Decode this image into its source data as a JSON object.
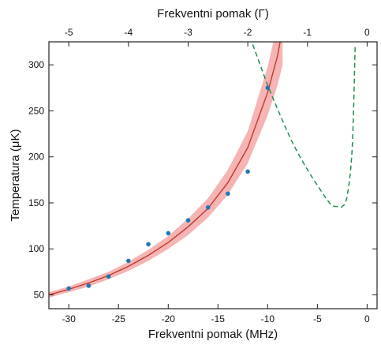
{
  "chart_data": {
    "type": "scatter",
    "title": "",
    "xlabel": "Frekventni pomak (MHz)",
    "xlabel_top": "Frekventni pomak (Γ)",
    "ylabel": "Temperatura (μK)",
    "xlim": [
      -32,
      1
    ],
    "ylim": [
      35,
      325
    ],
    "x_ticks": [
      -30,
      -25,
      -20,
      -15,
      -10,
      -5,
      0
    ],
    "x_ticks_top": [
      -5,
      -4,
      -3,
      -2,
      -1,
      0
    ],
    "y_ticks": [
      50,
      100,
      150,
      200,
      250,
      300
    ],
    "grid": false,
    "legend": "none",
    "colors": {
      "points": "#1f77b4",
      "fit": "#c0392b",
      "band": "#f4a7a7",
      "theory": "#1e8f4e"
    },
    "series": [
      {
        "kind": "points",
        "x": [
          -30,
          -28,
          -26,
          -24,
          -22,
          -20,
          -18,
          -16,
          -14,
          -12,
          -10
        ],
        "y": [
          57,
          60,
          70,
          87,
          105,
          117,
          131,
          145,
          160,
          184,
          275
        ]
      },
      {
        "kind": "fit-line",
        "x": [
          -32,
          -30,
          -28,
          -26,
          -24,
          -22,
          -20,
          -18,
          -16,
          -14,
          -12,
          -10,
          -9,
          -8.5
        ],
        "y": [
          50,
          56,
          63,
          71,
          81,
          93,
          107,
          124,
          144,
          172,
          210,
          270,
          310,
          340
        ]
      },
      {
        "kind": "fit-band",
        "x": [
          -32,
          -30,
          -28,
          -26,
          -24,
          -22,
          -20,
          -18,
          -16,
          -14,
          -12,
          -10,
          -9,
          -8.5
        ],
        "y_low": [
          47,
          53,
          59,
          67,
          76,
          87,
          100,
          115,
          134,
          159,
          193,
          245,
          278,
          300
        ],
        "y_high": [
          53,
          59,
          67,
          75,
          86,
          99,
          114,
          133,
          155,
          186,
          228,
          298,
          345,
          380
        ]
      },
      {
        "kind": "theory-dashed",
        "x": [
          -11.5,
          -10,
          -9,
          -8,
          -7,
          -6,
          -5,
          -4,
          -3.5,
          -3,
          -2.5,
          -2,
          -1.5,
          -1.2
        ],
        "y": [
          322,
          278,
          252,
          227,
          205,
          186,
          169,
          153,
          147,
          146,
          146,
          158,
          210,
          322
        ]
      }
    ]
  }
}
